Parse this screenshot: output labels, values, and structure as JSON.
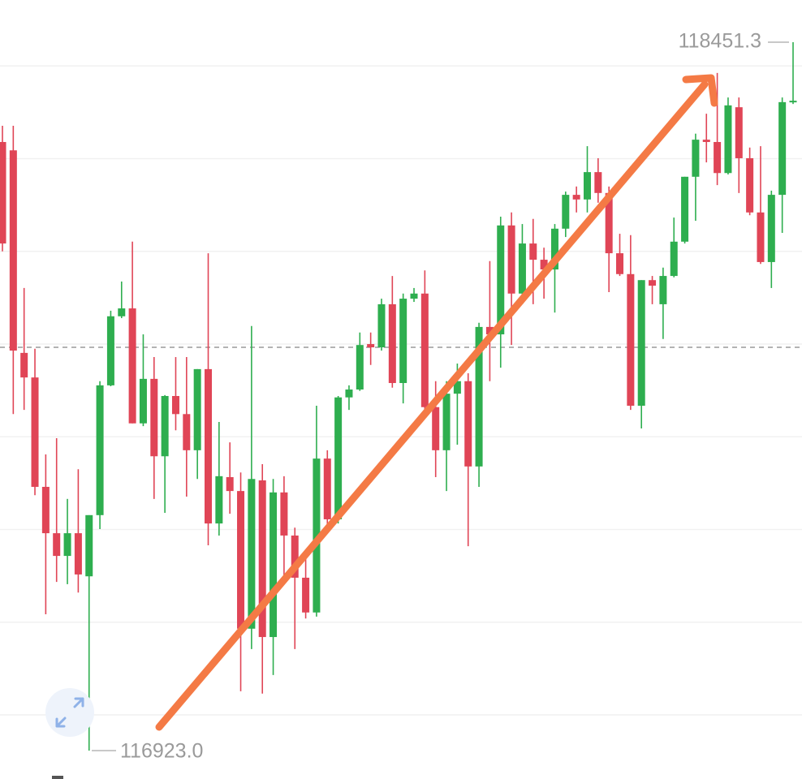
{
  "chart_data": {
    "type": "candlestick",
    "up_color": "#2eae4f",
    "down_color": "#e04556",
    "grid": true,
    "grid_lines": [
      118400,
      118200,
      118000,
      117800,
      117600,
      117400,
      117200,
      117000
    ],
    "price_line": 117793,
    "max_label": {
      "value": 118451.3,
      "label": "118451.3"
    },
    "min_label": {
      "value": 116923,
      "label": "116923.0"
    },
    "open": [
      118236,
      118218,
      117781,
      117728,
      117492,
      117392,
      117343,
      117392,
      117299,
      117431,
      117711,
      117860,
      117877,
      117629,
      117725,
      117558,
      117688,
      117649,
      117571,
      117746,
      117413,
      117513,
      117483,
      117186,
      117506,
      117168,
      117480,
      117387,
      117296,
      117221,
      117553,
      117422,
      117685,
      117702,
      117800,
      117793,
      117886,
      117716,
      117898,
      117909,
      117664,
      117571,
      117693,
      117720,
      117536,
      117837,
      117821,
      118056,
      117909,
      118017,
      117982,
      117961,
      118049,
      118122,
      118112,
      118171,
      118126,
      117996,
      117951,
      117667,
      117938,
      117886,
      117947,
      118021,
      118161,
      118241,
      118236,
      118169,
      118311,
      118201,
      118084,
      117977,
      118122,
      118322
    ],
    "high": [
      118271,
      118271,
      117921,
      117790,
      117562,
      117597,
      117466,
      117530,
      117431,
      117720,
      117872,
      117935,
      118021,
      117821,
      117772,
      117690,
      117772,
      117772,
      117746,
      117996,
      117632,
      117588,
      117523,
      117839,
      117541,
      117509,
      117515,
      117404,
      117341,
      117667,
      117571,
      117688,
      117711,
      117825,
      117825,
      117898,
      117947,
      117909,
      117921,
      117959,
      117720,
      117720,
      117758,
      117737,
      117846,
      117979,
      118075,
      118084,
      118059,
      118070,
      118008,
      118059,
      118129,
      118140,
      118227,
      118201,
      118140,
      118038,
      118035,
      117938,
      117947,
      117965,
      118073,
      118161,
      118254,
      118297,
      118385,
      118332,
      118332,
      118224,
      118227,
      118131,
      118332,
      118451.3
    ],
    "low": [
      118000,
      117649,
      117658,
      117474,
      117217,
      117287,
      117282,
      117264,
      116923,
      117401,
      117709,
      117856,
      117629,
      117623,
      117466,
      117436,
      117614,
      117471,
      117509,
      117366,
      117387,
      117434,
      117051,
      117142,
      117046,
      117086,
      117282,
      117142,
      117208,
      117212,
      117396,
      117413,
      117658,
      117699,
      117755,
      117786,
      117706,
      117672,
      117891,
      117658,
      117513,
      117483,
      117583,
      117364,
      117492,
      117720,
      117749,
      117798,
      117886,
      117886,
      117898,
      117868,
      118031,
      118084,
      118084,
      118105,
      117912,
      117947,
      117658,
      117618,
      117886,
      117811,
      117944,
      118017,
      118066,
      118192,
      118143,
      118166,
      118126,
      118078,
      117973,
      117921,
      118040,
      118318
    ],
    "close": [
      118017,
      117786,
      117728,
      117492,
      117392,
      117343,
      117392,
      117303,
      117431,
      117711,
      117860,
      117877,
      117629,
      117725,
      117558,
      117688,
      117649,
      117571,
      117746,
      117413,
      117515,
      117483,
      117186,
      117509,
      117168,
      117480,
      117387,
      117296,
      117221,
      117553,
      117422,
      117685,
      117702,
      117798,
      117793,
      117886,
      117716,
      117898,
      117909,
      117664,
      117571,
      117693,
      117720,
      117536,
      117837,
      117821,
      118056,
      117909,
      118017,
      117982,
      117961,
      118049,
      118122,
      118112,
      118171,
      118126,
      117996,
      117951,
      117667,
      117938,
      117926,
      117947,
      118021,
      118161,
      118241,
      118236,
      118169,
      118315,
      118201,
      118084,
      117977,
      118122,
      118322,
      118325
    ]
  }
}
